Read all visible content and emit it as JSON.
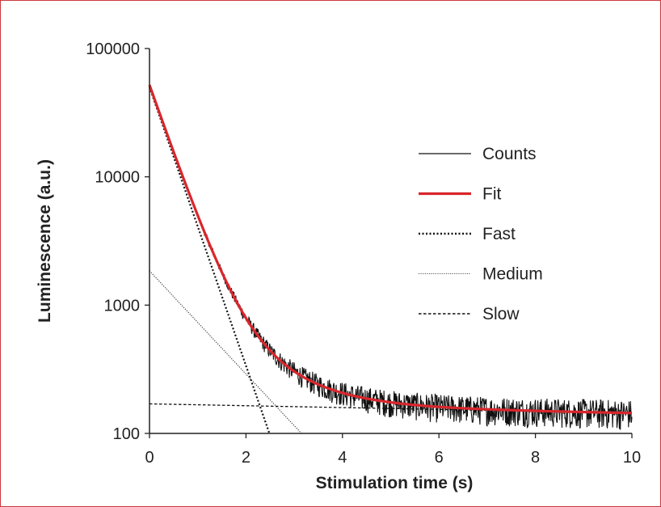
{
  "chart_data": {
    "type": "line",
    "xlabel": "Stimulation time (s)",
    "ylabel": "Luminescence (a.u.)",
    "xlim": [
      0,
      10
    ],
    "ylim": [
      100,
      100000
    ],
    "yscale": "log",
    "x_ticks": [
      "0",
      "2",
      "4",
      "6",
      "8",
      "10"
    ],
    "y_ticks": [
      "100",
      "1000",
      "10000",
      "100000"
    ],
    "legend_placement": "center-right",
    "grid": false,
    "colors": {
      "counts": "#111111",
      "fit": "#d9262c",
      "components": "#111111"
    },
    "components": {
      "fast": {
        "amplitude": 50000,
        "tau": 0.4
      },
      "medium": {
        "amplitude": 1850,
        "tau": 1.08
      },
      "slow": {
        "amplitude": 170,
        "tau": 60
      }
    },
    "series": [
      {
        "name": "Counts",
        "style": "thin-solid-noisy"
      },
      {
        "name": "Fit",
        "style": "thick-solid-red"
      },
      {
        "name": "Fast",
        "style": "dotted"
      },
      {
        "name": "Medium",
        "style": "fine-dotted"
      },
      {
        "name": "Slow",
        "style": "dashed"
      }
    ]
  }
}
